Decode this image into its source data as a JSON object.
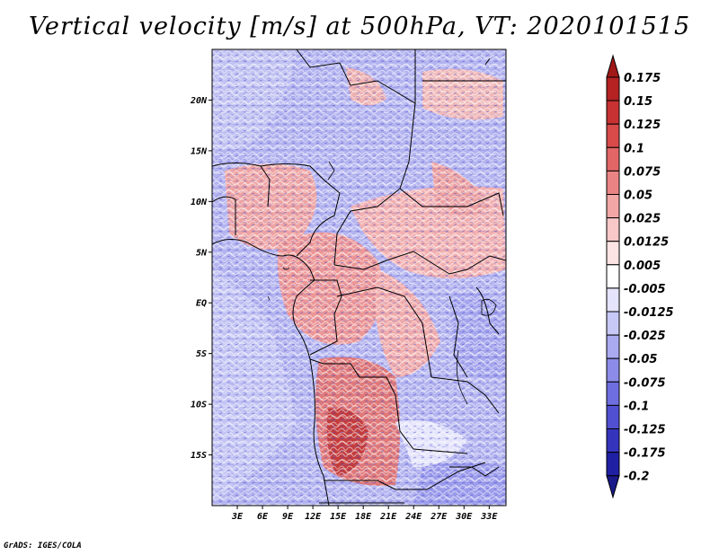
{
  "title": "Vertical velocity [m/s] at 500hPa, VT: 2020101515",
  "footer": "GrADS: IGES/COLA",
  "map": {
    "variable": "Vertical velocity",
    "units": "m/s",
    "level": "500hPa",
    "valid_time": "2020101515",
    "lon_range": [
      0,
      35
    ],
    "lat_range": [
      -20,
      25
    ],
    "lat_ticks": [
      {
        "value": 20,
        "label": "20N"
      },
      {
        "value": 15,
        "label": "15N"
      },
      {
        "value": 10,
        "label": "10N"
      },
      {
        "value": 5,
        "label": "5N"
      },
      {
        "value": 0,
        "label": "EQ"
      },
      {
        "value": -5,
        "label": "5S"
      },
      {
        "value": -10,
        "label": "10S"
      },
      {
        "value": -15,
        "label": "15S"
      }
    ],
    "lon_ticks": [
      {
        "value": 3,
        "label": "3E"
      },
      {
        "value": 6,
        "label": "6E"
      },
      {
        "value": 9,
        "label": "9E"
      },
      {
        "value": 12,
        "label": "12E"
      },
      {
        "value": 15,
        "label": "15E"
      },
      {
        "value": 18,
        "label": "18E"
      },
      {
        "value": 21,
        "label": "21E"
      },
      {
        "value": 24,
        "label": "24E"
      },
      {
        "value": 27,
        "label": "27E"
      },
      {
        "value": 30,
        "label": "30E"
      },
      {
        "value": 33,
        "label": "33E"
      }
    ]
  },
  "colorbar": {
    "labels": [
      "0.175",
      "0.15",
      "0.125",
      "0.1",
      "0.075",
      "0.05",
      "0.025",
      "0.0125",
      "0.005",
      "-0.005",
      "-0.0125",
      "-0.025",
      "-0.05",
      "-0.075",
      "-0.1",
      "-0.125",
      "-0.175",
      "-0.2"
    ],
    "colors": [
      "#a01818",
      "#b42222",
      "#c83232",
      "#d84a4a",
      "#e26666",
      "#ea8484",
      "#f2a6a6",
      "#f8c8c8",
      "#fce4e4",
      "#ffffff",
      "#e4e4fc",
      "#c8c8f6",
      "#aaaaf0",
      "#8c8ce8",
      "#6e6ee0",
      "#5050d0",
      "#3434bc",
      "#2020a4",
      "#1a1a8a"
    ]
  }
}
